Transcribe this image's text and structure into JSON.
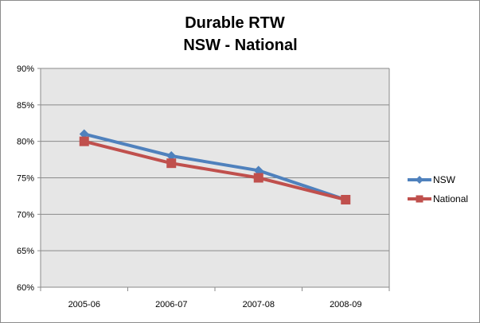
{
  "chart_data": {
    "type": "line",
    "title_lines": [
      "Durable RTW",
      "NSW - National"
    ],
    "categories": [
      "2005-06",
      "2006-07",
      "2007-08",
      "2008-09"
    ],
    "series": [
      {
        "name": "NSW",
        "values": [
          81,
          78,
          76,
          72
        ],
        "color": "#4F81BD",
        "marker": "diamond"
      },
      {
        "name": "National",
        "values": [
          80,
          77,
          75,
          72
        ],
        "color": "#C0504D",
        "marker": "square"
      }
    ],
    "ylim": [
      60,
      90
    ],
    "y_ticks": [
      60,
      65,
      70,
      75,
      80,
      85,
      90
    ],
    "y_tick_labels": [
      "60%",
      "65%",
      "70%",
      "75%",
      "80%",
      "85%",
      "90%"
    ],
    "grid": true,
    "legend_position": "right",
    "plot_background": "#E6E6E6"
  }
}
